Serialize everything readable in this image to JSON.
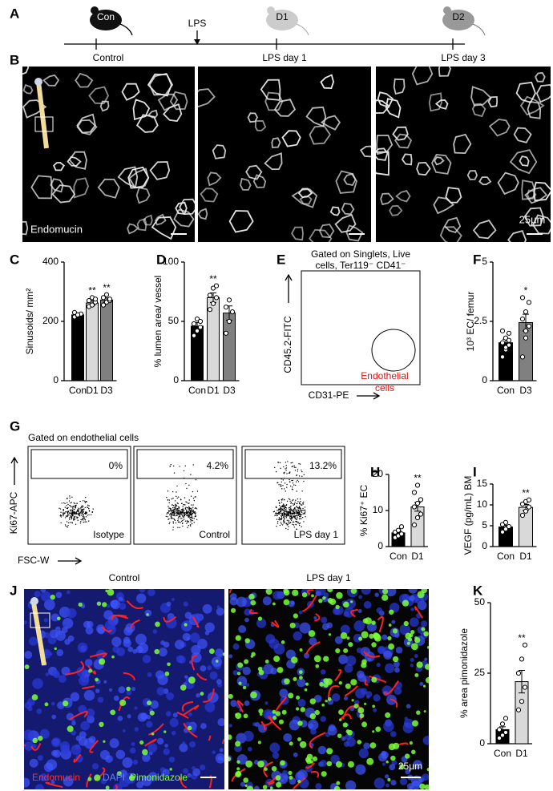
{
  "panel_labels": [
    "A",
    "B",
    "C",
    "D",
    "E",
    "F",
    "G",
    "H",
    "I",
    "J",
    "K"
  ],
  "timeline": {
    "icons": [
      "Con",
      "D1",
      "D2"
    ],
    "labels": [
      "Control",
      "LPS day 1",
      "LPS day 3"
    ],
    "treatment": "LPS"
  },
  "panel_b": {
    "stain": "Endomucin",
    "scale": "25µm"
  },
  "panel_e": {
    "title": [
      "Gated on Singlets, Live",
      "cells, Ter119⁻ CD41⁻"
    ],
    "y_label": "CD45.2-FITC",
    "x_label": "CD31-PE",
    "gate_label": [
      "Endothelial",
      "cells"
    ]
  },
  "panel_g": {
    "title": "Gated on endothelial cells",
    "y_label": "Ki67-APC",
    "x_label": "FSC-W",
    "plots": [
      {
        "gate": "0%",
        "name": "Isotype"
      },
      {
        "gate": "4.2%",
        "name": "Control"
      },
      {
        "gate": "13.2%",
        "name": "LPS day 1"
      }
    ]
  },
  "panel_j": {
    "titles": [
      "Control",
      "LPS day 1"
    ],
    "legend": [
      "Endomucin",
      "DAPI",
      "Pimonidazole"
    ],
    "scale": "25µm"
  },
  "chart_data": [
    {
      "type": "bar",
      "y_label": "Sinusoids/ mm²",
      "categories": [
        "Con",
        "D1",
        "D3"
      ],
      "values": [
        222,
        262,
        272
      ],
      "errors": [
        5,
        8,
        7
      ],
      "points": [
        [
          215,
          220,
          225,
          230,
          222
        ],
        [
          250,
          255,
          265,
          270,
          280,
          275
        ],
        [
          255,
          265,
          270,
          280,
          290,
          275
        ]
      ],
      "significance": [
        null,
        "**",
        "**"
      ],
      "colors": [
        "#000000",
        "#d9d9d9",
        "#808080"
      ],
      "ylim": [
        0,
        400
      ],
      "yticks": [
        0,
        200,
        400
      ]
    },
    {
      "type": "bar",
      "y_label": "% lumen area/ vessel",
      "categories": [
        "Con",
        "D1",
        "D3"
      ],
      "values": [
        46,
        70,
        57
      ],
      "errors": [
        3,
        4,
        6
      ],
      "points": [
        [
          38,
          42,
          45,
          48,
          52,
          50
        ],
        [
          60,
          65,
          70,
          72,
          78,
          80
        ],
        [
          40,
          50,
          58,
          62,
          68
        ]
      ],
      "significance": [
        null,
        "**",
        null
      ],
      "colors": [
        "#000000",
        "#d9d9d9",
        "#808080"
      ],
      "ylim": [
        0,
        100
      ],
      "yticks": [
        0,
        50,
        100
      ]
    },
    {
      "type": "bar",
      "y_label": "10³ EC/ femur",
      "categories": [
        "Con",
        "D3"
      ],
      "values": [
        1.6,
        2.45
      ],
      "errors": [
        0.15,
        0.35
      ],
      "points": [
        [
          1.0,
          1.3,
          1.5,
          1.6,
          1.8,
          2.0,
          2.1,
          1.4,
          1.7
        ],
        [
          1.0,
          1.8,
          2.3,
          2.6,
          2.9,
          3.3,
          3.5,
          2.1
        ]
      ],
      "significance": [
        null,
        "*"
      ],
      "colors": [
        "#000000",
        "#808080"
      ],
      "ylim": [
        0,
        5
      ],
      "yticks": [
        0,
        2.5,
        5
      ]
    },
    {
      "type": "bar",
      "y_label": "% Ki67⁺ EC",
      "categories": [
        "Con",
        "D1"
      ],
      "values": [
        3.8,
        11
      ],
      "errors": [
        0.5,
        1.2
      ],
      "points": [
        [
          2.5,
          3,
          3.5,
          4,
          4.5,
          5.5
        ],
        [
          6,
          8,
          9,
          11,
          12,
          13,
          15,
          17
        ]
      ],
      "significance": [
        null,
        "**"
      ],
      "colors": [
        "#000000",
        "#d9d9d9"
      ],
      "ylim": [
        0,
        20
      ],
      "yticks": [
        0,
        10,
        20
      ]
    },
    {
      "type": "bar",
      "y_label": "VEGF (pg/mL) BM",
      "categories": [
        "Con",
        "D1"
      ],
      "values": [
        4.7,
        9.4
      ],
      "errors": [
        0.4,
        0.7
      ],
      "points": [
        [
          3.5,
          4.2,
          4.8,
          5.3,
          5.8
        ],
        [
          7.5,
          8.5,
          9.5,
          10.2,
          10.8,
          11.2
        ]
      ],
      "significance": [
        null,
        "**"
      ],
      "colors": [
        "#000000",
        "#d9d9d9"
      ],
      "ylim": [
        0,
        15
      ],
      "yticks": [
        0,
        5,
        10,
        15
      ]
    },
    {
      "type": "bar",
      "y_label": "% area pimonidazole",
      "categories": [
        "Con",
        "D1"
      ],
      "values": [
        5,
        22
      ],
      "errors": [
        1,
        4
      ],
      "points": [
        [
          2,
          3,
          4,
          5,
          7,
          9
        ],
        [
          12,
          15,
          20,
          25,
          30,
          35
        ]
      ],
      "significance": [
        null,
        "**"
      ],
      "colors": [
        "#000000",
        "#d9d9d9"
      ],
      "ylim": [
        0,
        50
      ],
      "yticks": [
        0,
        25,
        50
      ]
    }
  ]
}
